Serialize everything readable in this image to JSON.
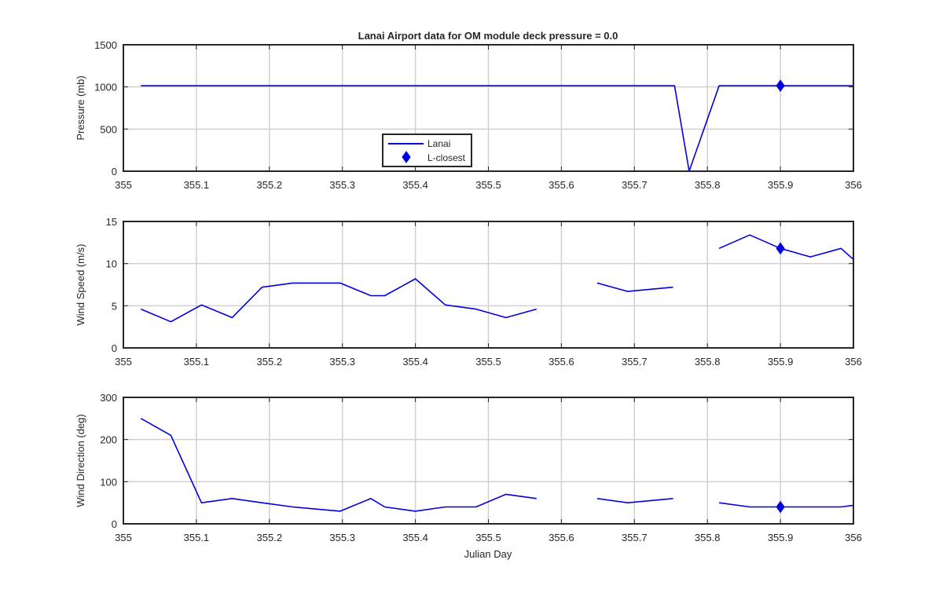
{
  "title": "Lanai Airport data for OM module      deck pressure = 0.0",
  "xlabel": "Julian Day",
  "colors": {
    "series": "#0000e0",
    "grid": "#d0d0d0",
    "axes": "#262626"
  },
  "legend": {
    "placement": "south-center of top panel",
    "entries": [
      "Lanai",
      "L-closest"
    ]
  },
  "chart_data": [
    {
      "type": "line",
      "ylabel": "Pressure (mb)",
      "xlim": [
        355,
        356
      ],
      "ylim": [
        0,
        1500
      ],
      "xticks": [
        "355",
        "355.1",
        "355.2",
        "355.3",
        "355.4",
        "355.5",
        "355.6",
        "355.7",
        "355.8",
        "355.9",
        "356"
      ],
      "yticks": [
        "0",
        "500",
        "1000",
        "1500"
      ],
      "grid": true,
      "series": [
        {
          "name": "Lanai",
          "segments": [
            [
              [
                355.024,
                1014
              ],
              [
                355.755,
                1014
              ],
              [
                355.775,
                0
              ],
              [
                355.816,
                1014
              ],
              [
                356.0,
                1014
              ]
            ]
          ]
        },
        {
          "name": "L-closest",
          "marker": "diamond",
          "points": [
            [
              355.9,
              1014
            ]
          ]
        }
      ]
    },
    {
      "type": "line",
      "ylabel": "Wind Speed (m/s)",
      "xlim": [
        355,
        356
      ],
      "ylim": [
        0,
        15
      ],
      "xticks": [
        "355",
        "355.1",
        "355.2",
        "355.3",
        "355.4",
        "355.5",
        "355.6",
        "355.7",
        "355.8",
        "355.9",
        "356"
      ],
      "yticks": [
        "0",
        "5",
        "10",
        "15"
      ],
      "grid": true,
      "series": [
        {
          "name": "Lanai",
          "segments": [
            [
              [
                355.024,
                4.6
              ],
              [
                355.065,
                3.1
              ],
              [
                355.107,
                5.1
              ],
              [
                355.149,
                3.6
              ],
              [
                355.19,
                7.2
              ],
              [
                355.232,
                7.7
              ],
              [
                355.297,
                7.7
              ],
              [
                355.339,
                6.2
              ],
              [
                355.358,
                6.2
              ],
              [
                355.4,
                8.2
              ],
              [
                355.441,
                5.1
              ],
              [
                355.483,
                4.6
              ],
              [
                355.524,
                3.6
              ],
              [
                355.566,
                4.6
              ]
            ],
            [
              [
                355.649,
                7.7
              ],
              [
                355.691,
                6.7
              ],
              [
                355.753,
                7.2
              ]
            ],
            [
              [
                355.816,
                11.8
              ],
              [
                355.858,
                13.4
              ],
              [
                355.9,
                11.8
              ],
              [
                355.941,
                10.8
              ],
              [
                355.983,
                11.8
              ],
              [
                356.0,
                10.5
              ]
            ]
          ]
        },
        {
          "name": "L-closest",
          "marker": "diamond",
          "points": [
            [
              355.9,
              11.8
            ]
          ]
        }
      ]
    },
    {
      "type": "line",
      "ylabel": "Wind Direction (deg)",
      "xlim": [
        355,
        356
      ],
      "ylim": [
        0,
        300
      ],
      "xticks": [
        "355",
        "355.1",
        "355.2",
        "355.3",
        "355.4",
        "355.5",
        "355.6",
        "355.7",
        "355.8",
        "355.9",
        "356"
      ],
      "yticks": [
        "0",
        "100",
        "200",
        "300"
      ],
      "grid": true,
      "series": [
        {
          "name": "Lanai",
          "segments": [
            [
              [
                355.024,
                250
              ],
              [
                355.065,
                210
              ],
              [
                355.107,
                50
              ],
              [
                355.149,
                60
              ],
              [
                355.19,
                50
              ],
              [
                355.232,
                40
              ],
              [
                355.297,
                30
              ],
              [
                355.339,
                60
              ],
              [
                355.358,
                40
              ],
              [
                355.4,
                30
              ],
              [
                355.441,
                40
              ],
              [
                355.483,
                40
              ],
              [
                355.524,
                70
              ],
              [
                355.566,
                60
              ]
            ],
            [
              [
                355.649,
                60
              ],
              [
                355.691,
                50
              ],
              [
                355.753,
                60
              ]
            ],
            [
              [
                355.816,
                50
              ],
              [
                355.858,
                40
              ],
              [
                355.9,
                40
              ],
              [
                355.941,
                40
              ],
              [
                355.983,
                40
              ],
              [
                356.0,
                44
              ]
            ]
          ]
        },
        {
          "name": "L-closest",
          "marker": "diamond",
          "points": [
            [
              355.9,
              40
            ]
          ]
        }
      ]
    }
  ]
}
